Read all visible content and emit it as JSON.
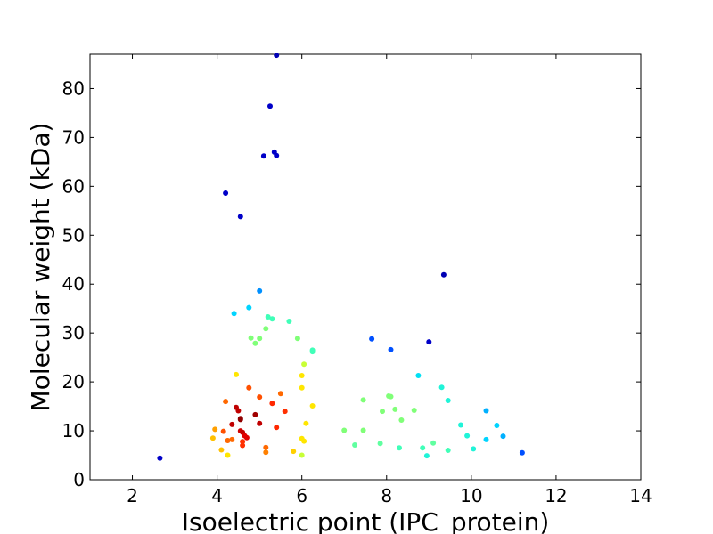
{
  "chart_data": {
    "type": "scatter",
    "xlabel": "Isoelectric point (IPC_protein)",
    "ylabel": "Molecular weight (kDa)",
    "xlim": [
      1,
      14
    ],
    "ylim": [
      0,
      87
    ],
    "xticks": [
      2,
      4,
      6,
      8,
      10,
      12,
      14
    ],
    "yticks": [
      0,
      10,
      20,
      30,
      40,
      50,
      60,
      70,
      80
    ],
    "grid": false,
    "color_scale": "jet, colored by point density",
    "points": [
      {
        "x": 5.4,
        "y": 86.8,
        "color": "#0000b4"
      },
      {
        "x": 5.25,
        "y": 76.4,
        "color": "#0000c8"
      },
      {
        "x": 5.35,
        "y": 67.0,
        "color": "#0000c8"
      },
      {
        "x": 5.4,
        "y": 66.3,
        "color": "#0000c8"
      },
      {
        "x": 5.1,
        "y": 66.2,
        "color": "#0000c8"
      },
      {
        "x": 4.2,
        "y": 58.6,
        "color": "#0000c8"
      },
      {
        "x": 4.55,
        "y": 53.8,
        "color": "#0000c8"
      },
      {
        "x": 9.35,
        "y": 41.9,
        "color": "#0000b4"
      },
      {
        "x": 5.0,
        "y": 38.6,
        "color": "#0090ff"
      },
      {
        "x": 4.4,
        "y": 34.0,
        "color": "#00d4ff"
      },
      {
        "x": 4.75,
        "y": 35.2,
        "color": "#00d4ff"
      },
      {
        "x": 5.2,
        "y": 33.3,
        "color": "#40ffb8"
      },
      {
        "x": 5.3,
        "y": 32.9,
        "color": "#40ffb8"
      },
      {
        "x": 5.7,
        "y": 32.4,
        "color": "#40ffb8"
      },
      {
        "x": 5.15,
        "y": 30.9,
        "color": "#80ff78"
      },
      {
        "x": 4.8,
        "y": 29.0,
        "color": "#80ff78"
      },
      {
        "x": 5.0,
        "y": 28.9,
        "color": "#80ff78"
      },
      {
        "x": 4.9,
        "y": 27.9,
        "color": "#80ff78"
      },
      {
        "x": 5.9,
        "y": 28.9,
        "color": "#80ff78"
      },
      {
        "x": 6.25,
        "y": 26.5,
        "color": "#40ffb8"
      },
      {
        "x": 6.25,
        "y": 26.2,
        "color": "#40ffb8"
      },
      {
        "x": 7.65,
        "y": 28.8,
        "color": "#0050ff"
      },
      {
        "x": 8.1,
        "y": 26.6,
        "color": "#0050ff"
      },
      {
        "x": 9.0,
        "y": 28.2,
        "color": "#0000c8"
      },
      {
        "x": 6.05,
        "y": 23.6,
        "color": "#c8ff36"
      },
      {
        "x": 4.45,
        "y": 21.5,
        "color": "#ffe600"
      },
      {
        "x": 6.0,
        "y": 21.3,
        "color": "#ffe600"
      },
      {
        "x": 8.75,
        "y": 21.3,
        "color": "#00e0f4"
      },
      {
        "x": 6.0,
        "y": 18.8,
        "color": "#ffe600"
      },
      {
        "x": 4.75,
        "y": 18.8,
        "color": "#ff5000"
      },
      {
        "x": 5.5,
        "y": 17.6,
        "color": "#ff6800"
      },
      {
        "x": 5.0,
        "y": 16.9,
        "color": "#ff5000"
      },
      {
        "x": 4.2,
        "y": 16.0,
        "color": "#ff6800"
      },
      {
        "x": 5.3,
        "y": 15.6,
        "color": "#ff2800"
      },
      {
        "x": 6.25,
        "y": 15.1,
        "color": "#ffe600"
      },
      {
        "x": 4.45,
        "y": 14.8,
        "color": "#c00000"
      },
      {
        "x": 4.5,
        "y": 14.1,
        "color": "#c00000"
      },
      {
        "x": 5.6,
        "y": 14.0,
        "color": "#ff3000"
      },
      {
        "x": 4.9,
        "y": 13.3,
        "color": "#a00000"
      },
      {
        "x": 4.55,
        "y": 12.5,
        "color": "#900000"
      },
      {
        "x": 4.55,
        "y": 12.3,
        "color": "#900000"
      },
      {
        "x": 5.0,
        "y": 11.5,
        "color": "#c00000"
      },
      {
        "x": 4.35,
        "y": 11.3,
        "color": "#c00000"
      },
      {
        "x": 6.1,
        "y": 11.5,
        "color": "#ffe600"
      },
      {
        "x": 5.4,
        "y": 10.7,
        "color": "#ff2800"
      },
      {
        "x": 3.95,
        "y": 10.3,
        "color": "#ffa000"
      },
      {
        "x": 4.15,
        "y": 9.9,
        "color": "#ff5000"
      },
      {
        "x": 4.55,
        "y": 10.0,
        "color": "#d00000"
      },
      {
        "x": 4.6,
        "y": 9.7,
        "color": "#c00000"
      },
      {
        "x": 4.65,
        "y": 9.0,
        "color": "#e00000"
      },
      {
        "x": 4.7,
        "y": 8.6,
        "color": "#e00000"
      },
      {
        "x": 3.9,
        "y": 8.5,
        "color": "#ffc000"
      },
      {
        "x": 4.25,
        "y": 8.0,
        "color": "#ff6800"
      },
      {
        "x": 4.35,
        "y": 8.2,
        "color": "#ff6800"
      },
      {
        "x": 4.6,
        "y": 7.8,
        "color": "#ff3000"
      },
      {
        "x": 4.6,
        "y": 7.0,
        "color": "#ff3000"
      },
      {
        "x": 6.0,
        "y": 8.4,
        "color": "#ffe600"
      },
      {
        "x": 6.05,
        "y": 7.9,
        "color": "#ffe600"
      },
      {
        "x": 5.15,
        "y": 6.6,
        "color": "#ff6800"
      },
      {
        "x": 4.1,
        "y": 6.1,
        "color": "#ffc000"
      },
      {
        "x": 5.15,
        "y": 5.6,
        "color": "#ff8000"
      },
      {
        "x": 5.8,
        "y": 5.8,
        "color": "#ffd000"
      },
      {
        "x": 4.25,
        "y": 5.0,
        "color": "#ffe600"
      },
      {
        "x": 6.0,
        "y": 5.0,
        "color": "#c8ff36"
      },
      {
        "x": 2.65,
        "y": 4.4,
        "color": "#0000c8"
      },
      {
        "x": 7.45,
        "y": 16.3,
        "color": "#80ff78"
      },
      {
        "x": 8.05,
        "y": 17.1,
        "color": "#80ff78"
      },
      {
        "x": 8.1,
        "y": 17.0,
        "color": "#80ff78"
      },
      {
        "x": 8.2,
        "y": 14.4,
        "color": "#80ff78"
      },
      {
        "x": 7.9,
        "y": 14.0,
        "color": "#80ff78"
      },
      {
        "x": 8.65,
        "y": 14.2,
        "color": "#80ff78"
      },
      {
        "x": 8.35,
        "y": 12.2,
        "color": "#80ff78"
      },
      {
        "x": 9.3,
        "y": 18.9,
        "color": "#20f4d8"
      },
      {
        "x": 9.45,
        "y": 16.2,
        "color": "#20f4d8"
      },
      {
        "x": 10.35,
        "y": 14.1,
        "color": "#00b0ff"
      },
      {
        "x": 9.75,
        "y": 11.2,
        "color": "#20f4d8"
      },
      {
        "x": 10.6,
        "y": 11.1,
        "color": "#00d4ff"
      },
      {
        "x": 7.0,
        "y": 10.1,
        "color": "#80ff78"
      },
      {
        "x": 7.45,
        "y": 10.1,
        "color": "#80ff78"
      },
      {
        "x": 9.9,
        "y": 9.0,
        "color": "#20f4d8"
      },
      {
        "x": 10.75,
        "y": 8.9,
        "color": "#00b0ff"
      },
      {
        "x": 10.35,
        "y": 8.2,
        "color": "#00d4ff"
      },
      {
        "x": 7.85,
        "y": 7.4,
        "color": "#60ffa0"
      },
      {
        "x": 9.1,
        "y": 7.5,
        "color": "#60ffa0"
      },
      {
        "x": 7.25,
        "y": 7.1,
        "color": "#60ffa0"
      },
      {
        "x": 8.3,
        "y": 6.5,
        "color": "#40ffb8"
      },
      {
        "x": 8.85,
        "y": 6.5,
        "color": "#40ffb8"
      },
      {
        "x": 9.45,
        "y": 6.0,
        "color": "#40ffb8"
      },
      {
        "x": 10.05,
        "y": 6.3,
        "color": "#20f4d8"
      },
      {
        "x": 8.95,
        "y": 4.9,
        "color": "#20f4d8"
      },
      {
        "x": 11.2,
        "y": 5.5,
        "color": "#0050ff"
      }
    ]
  }
}
